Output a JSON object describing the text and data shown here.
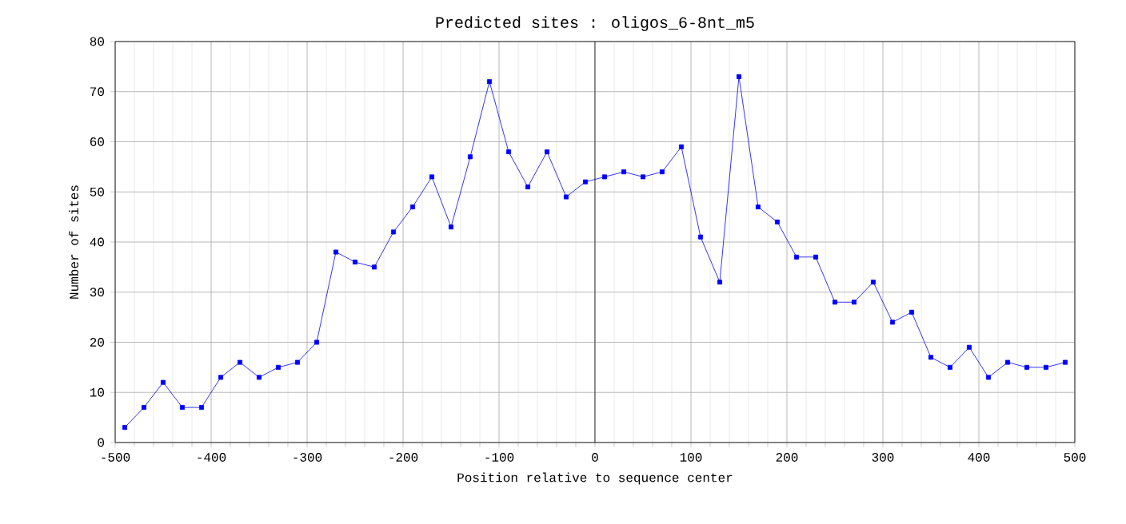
{
  "chart_data": {
    "type": "line",
    "title": "Predicted sites : oligos_6-8nt_m5",
    "xlabel": "Position relative to sequence center",
    "ylabel": "Number of sites",
    "x": [
      -490,
      -470,
      -450,
      -430,
      -410,
      -390,
      -370,
      -350,
      -330,
      -310,
      -290,
      -270,
      -250,
      -230,
      -210,
      -190,
      -170,
      -150,
      -130,
      -110,
      -90,
      -70,
      -50,
      -30,
      -10,
      10,
      30,
      50,
      70,
      90,
      110,
      130,
      150,
      170,
      190,
      210,
      230,
      250,
      270,
      290,
      310,
      330,
      350,
      370,
      390,
      410,
      430,
      450,
      470,
      490
    ],
    "series": [
      {
        "color": "#0000ff",
        "values": [
          3,
          7,
          12,
          7,
          7,
          13,
          16,
          13,
          15,
          16,
          20,
          38,
          36,
          35,
          42,
          47,
          53,
          43,
          57,
          72,
          58,
          51,
          58,
          49,
          52,
          53,
          54,
          53,
          54,
          59,
          41,
          32,
          73,
          47,
          44,
          37,
          37,
          28,
          28,
          32,
          24,
          26,
          17,
          15,
          19,
          13,
          16,
          15,
          15,
          16
        ]
      }
    ],
    "xlim": [
      -500,
      500
    ],
    "xticks": [
      -500,
      -400,
      -300,
      -200,
      -100,
      0,
      100,
      200,
      300,
      400,
      500
    ],
    "ylim": [
      0,
      80
    ],
    "yticks": [
      0,
      10,
      20,
      30,
      40,
      50,
      60,
      70,
      80
    ],
    "ref_lines": [
      {
        "axis": "x",
        "value": 0,
        "color": "#000000"
      }
    ],
    "grid": true,
    "marker": "square"
  }
}
